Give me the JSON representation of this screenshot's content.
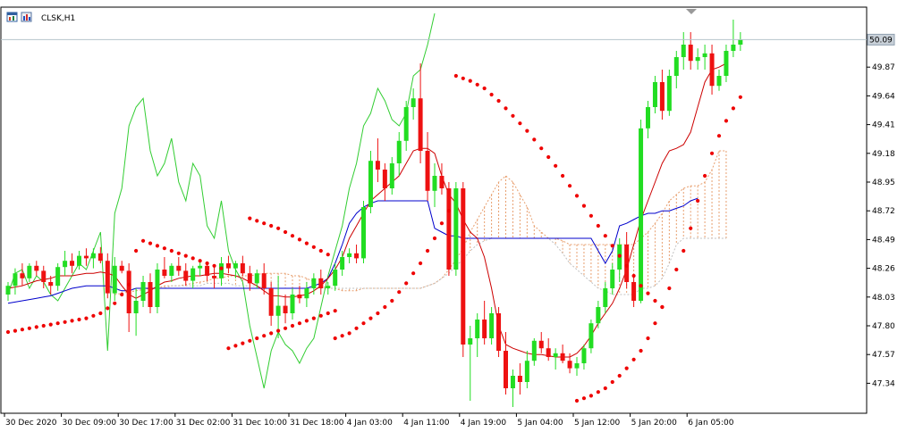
{
  "chart_data": {
    "type": "candlestick",
    "symbol_label": "CLSK,H1",
    "current_price_label": "50.09",
    "current_price": 50.09,
    "y_range": [
      47.1,
      50.35
    ],
    "y_ticks": [
      "49.87",
      "49.64",
      "49.41",
      "49.18",
      "48.95",
      "48.72",
      "48.49",
      "48.26",
      "48.03",
      "47.80",
      "47.57",
      "47.34"
    ],
    "x_ticks": [
      {
        "label": "30 Dec 2020",
        "bar": 0
      },
      {
        "label": "30 Dec 09:00",
        "bar": 8
      },
      {
        "label": "30 Dec 17:00",
        "bar": 16
      },
      {
        "label": "31 Dec 02:00",
        "bar": 24
      },
      {
        "label": "31 Dec 10:00",
        "bar": 32
      },
      {
        "label": "31 Dec 18:00",
        "bar": 40
      },
      {
        "label": "4 Jan 03:00",
        "bar": 48
      },
      {
        "label": "4 Jan 11:00",
        "bar": 56
      },
      {
        "label": "4 Jan 19:00",
        "bar": 64
      },
      {
        "label": "5 Jan 04:00",
        "bar": 72
      },
      {
        "label": "5 Jan 12:00",
        "bar": 80
      },
      {
        "label": "5 Jan 20:00",
        "bar": 88
      },
      {
        "label": "6 Jan 05:00",
        "bar": 96
      }
    ],
    "candles": [
      [
        48.05,
        48.15,
        48.0,
        48.12
      ],
      [
        48.12,
        48.26,
        48.05,
        48.22
      ],
      [
        48.22,
        48.3,
        48.12,
        48.18
      ],
      [
        48.18,
        48.3,
        48.15,
        48.28
      ],
      [
        48.28,
        48.32,
        48.2,
        48.24
      ],
      [
        48.24,
        48.28,
        48.1,
        48.15
      ],
      [
        48.15,
        48.2,
        48.05,
        48.12
      ],
      [
        48.12,
        48.3,
        48.08,
        48.27
      ],
      [
        48.27,
        48.4,
        48.2,
        48.32
      ],
      [
        48.32,
        48.38,
        48.22,
        48.28
      ],
      [
        48.28,
        48.4,
        48.25,
        48.36
      ],
      [
        48.36,
        48.42,
        48.28,
        48.34
      ],
      [
        48.34,
        48.42,
        48.26,
        48.38
      ],
      [
        48.38,
        48.43,
        48.3,
        48.32
      ],
      [
        48.32,
        48.38,
        48.02,
        48.06
      ],
      [
        48.06,
        48.35,
        48.0,
        48.28
      ],
      [
        48.28,
        48.32,
        48.22,
        48.24
      ],
      [
        48.24,
        48.3,
        47.75,
        47.9
      ],
      [
        47.9,
        48.1,
        47.72,
        48.0
      ],
      [
        48.0,
        48.2,
        47.95,
        48.15
      ],
      [
        48.15,
        48.22,
        47.9,
        47.95
      ],
      [
        47.95,
        48.3,
        47.9,
        48.25
      ],
      [
        48.25,
        48.35,
        48.18,
        48.2
      ],
      [
        48.2,
        48.3,
        48.15,
        48.28
      ],
      [
        48.28,
        48.35,
        48.2,
        48.24
      ],
      [
        48.24,
        48.3,
        48.12,
        48.16
      ],
      [
        48.16,
        48.28,
        48.1,
        48.26
      ],
      [
        48.26,
        48.32,
        48.2,
        48.28
      ],
      [
        48.28,
        48.3,
        48.16,
        48.2
      ],
      [
        48.2,
        48.28,
        48.1,
        48.18
      ],
      [
        48.18,
        48.35,
        48.12,
        48.3
      ],
      [
        48.3,
        48.36,
        48.22,
        48.26
      ],
      [
        48.26,
        48.32,
        48.18,
        48.3
      ],
      [
        48.3,
        48.36,
        48.2,
        48.22
      ],
      [
        48.22,
        48.28,
        48.08,
        48.14
      ],
      [
        48.14,
        48.25,
        48.1,
        48.22
      ],
      [
        48.22,
        48.3,
        48.05,
        48.1
      ],
      [
        48.1,
        48.15,
        47.8,
        47.88
      ],
      [
        47.88,
        48.2,
        47.7,
        47.96
      ],
      [
        47.96,
        48.05,
        47.82,
        47.9
      ],
      [
        47.9,
        48.1,
        47.85,
        48.05
      ],
      [
        48.05,
        48.12,
        47.98,
        48.02
      ],
      [
        48.02,
        48.15,
        47.95,
        48.1
      ],
      [
        48.1,
        48.22,
        48.05,
        48.18
      ],
      [
        48.18,
        48.25,
        48.05,
        48.1
      ],
      [
        48.1,
        48.15,
        48.05,
        48.12
      ],
      [
        48.12,
        48.3,
        48.08,
        48.25
      ],
      [
        48.25,
        48.4,
        48.2,
        48.35
      ],
      [
        48.35,
        48.42,
        48.3,
        48.38
      ],
      [
        48.38,
        48.45,
        48.3,
        48.34
      ],
      [
        48.34,
        48.8,
        48.3,
        48.75
      ],
      [
        48.75,
        49.2,
        48.7,
        49.12
      ],
      [
        49.12,
        49.3,
        48.95,
        49.05
      ],
      [
        49.05,
        49.1,
        48.8,
        48.9
      ],
      [
        48.9,
        49.15,
        48.85,
        49.1
      ],
      [
        49.1,
        49.35,
        49.0,
        49.28
      ],
      [
        49.28,
        49.6,
        49.2,
        49.55
      ],
      [
        49.55,
        49.7,
        49.45,
        49.62
      ],
      [
        49.62,
        49.9,
        49.1,
        49.2
      ],
      [
        49.2,
        49.35,
        48.8,
        48.88
      ],
      [
        48.88,
        49.1,
        48.75,
        49.0
      ],
      [
        49.0,
        49.1,
        48.85,
        48.9
      ],
      [
        48.9,
        48.95,
        48.2,
        48.25
      ],
      [
        48.25,
        48.95,
        48.2,
        48.9
      ],
      [
        48.9,
        48.95,
        47.55,
        47.65
      ],
      [
        47.65,
        47.8,
        47.2,
        47.7
      ],
      [
        47.7,
        47.9,
        47.55,
        47.85
      ],
      [
        47.85,
        48.0,
        47.65,
        47.7
      ],
      [
        47.7,
        47.95,
        47.65,
        47.9
      ],
      [
        47.9,
        47.95,
        47.55,
        47.6
      ],
      [
        47.6,
        47.75,
        47.25,
        47.3
      ],
      [
        47.3,
        47.45,
        47.15,
        47.4
      ],
      [
        47.4,
        47.5,
        47.25,
        47.35
      ],
      [
        47.35,
        47.6,
        47.3,
        47.52
      ],
      [
        47.52,
        47.7,
        47.48,
        47.68
      ],
      [
        47.68,
        47.75,
        47.58,
        47.62
      ],
      [
        47.62,
        47.7,
        47.52,
        47.55
      ],
      [
        47.55,
        47.62,
        47.45,
        47.58
      ],
      [
        47.58,
        47.65,
        47.5,
        47.52
      ],
      [
        47.52,
        47.58,
        47.42,
        47.46
      ],
      [
        47.46,
        47.55,
        47.4,
        47.5
      ],
      [
        47.5,
        47.65,
        47.45,
        47.62
      ],
      [
        47.62,
        47.85,
        47.58,
        47.82
      ],
      [
        47.82,
        48.0,
        47.78,
        47.95
      ],
      [
        47.95,
        48.15,
        47.9,
        48.1
      ],
      [
        48.1,
        48.3,
        48.05,
        48.25
      ],
      [
        48.25,
        48.5,
        48.15,
        48.45
      ],
      [
        48.45,
        48.55,
        48.1,
        48.15
      ],
      [
        48.15,
        48.2,
        47.95,
        48.0
      ],
      [
        48.0,
        49.45,
        47.98,
        49.38
      ],
      [
        49.38,
        49.6,
        49.3,
        49.55
      ],
      [
        49.55,
        49.8,
        49.5,
        49.75
      ],
      [
        49.75,
        49.85,
        49.45,
        49.52
      ],
      [
        49.52,
        49.85,
        49.48,
        49.8
      ],
      [
        49.8,
        50.0,
        49.7,
        49.95
      ],
      [
        49.95,
        50.15,
        49.85,
        50.05
      ],
      [
        50.05,
        50.15,
        49.85,
        49.92
      ],
      [
        49.92,
        50.02,
        49.85,
        49.95
      ],
      [
        49.95,
        50.05,
        49.85,
        49.98
      ],
      [
        49.98,
        50.05,
        49.65,
        49.72
      ],
      [
        49.72,
        49.85,
        49.68,
        49.8
      ],
      [
        49.8,
        50.05,
        49.75,
        50.0
      ],
      [
        50.0,
        50.25,
        49.95,
        50.05
      ],
      [
        50.05,
        50.15,
        50.0,
        50.09
      ]
    ],
    "psar_segments": [
      {
        "start": 0,
        "values": [
          47.75,
          47.76,
          47.77,
          47.78,
          47.79,
          47.8,
          47.81,
          47.82,
          47.83,
          47.84,
          47.85,
          47.86,
          47.88,
          47.9,
          47.94,
          47.98,
          48.05,
          48.13,
          48.4
        ]
      },
      {
        "start": 19,
        "values": [
          48.48,
          48.46,
          48.44,
          48.42,
          48.4,
          48.38,
          48.36,
          48.34,
          48.32,
          48.3,
          48.28,
          48.26
        ]
      },
      {
        "start": 31,
        "values": [
          47.62,
          47.64,
          47.66,
          47.68,
          47.7,
          47.72,
          47.74,
          47.76,
          47.78,
          47.8,
          47.82,
          47.84,
          47.86,
          47.88,
          47.9,
          47.92
        ]
      },
      {
        "start": 34,
        "values": [
          48.66,
          48.64,
          48.62,
          48.6,
          48.58,
          48.55,
          48.52,
          48.49,
          48.46,
          48.43,
          48.4,
          48.37
        ]
      },
      {
        "start": 46,
        "values": [
          47.7,
          47.72,
          47.74,
          47.78,
          47.82,
          47.86,
          47.9,
          47.95,
          48.0,
          48.07,
          48.14,
          48.22,
          48.3,
          48.4,
          48.5,
          48.62,
          48.72
        ]
      },
      {
        "start": 63,
        "values": [
          49.8,
          49.78,
          49.76,
          49.73,
          49.7,
          49.65,
          49.6,
          49.54,
          49.48,
          49.42,
          49.36,
          49.29,
          49.22,
          49.15,
          49.08,
          49.0,
          48.92,
          48.84,
          48.76,
          48.68,
          48.6,
          48.52,
          48.44,
          48.36,
          48.28,
          48.2,
          48.12,
          48.06,
          48.0,
          47.95
        ]
      },
      {
        "start": 80,
        "values": [
          47.2,
          47.22,
          47.24,
          47.27,
          47.3,
          47.35,
          47.4,
          47.46,
          47.53,
          47.6,
          47.7,
          47.82,
          47.95,
          48.1,
          48.25,
          48.4,
          48.58,
          48.8,
          49.0,
          49.18,
          49.32,
          49.44,
          49.54,
          49.63
        ]
      }
    ],
    "tenkan": [
      48.1,
      48.11,
      48.12,
      48.14,
      48.16,
      48.17,
      48.18,
      48.2,
      48.2,
      48.2,
      48.21,
      48.22,
      48.22,
      48.23,
      48.22,
      48.2,
      48.12,
      48.05,
      48.02,
      48.05,
      48.08,
      48.12,
      48.15,
      48.16,
      48.18,
      48.19,
      48.2,
      48.2,
      48.21,
      48.22,
      48.22,
      48.21,
      48.2,
      48.18,
      48.15,
      48.12,
      48.08,
      48.04,
      48.04,
      48.03,
      48.03,
      48.04,
      48.05,
      48.08,
      48.12,
      48.18,
      48.25,
      48.35,
      48.5,
      48.6,
      48.7,
      48.8,
      48.85,
      48.9,
      48.95,
      49.0,
      49.1,
      49.2,
      49.22,
      49.22,
      49.18,
      49.0,
      48.85,
      48.78,
      48.65,
      48.55,
      48.5,
      48.35,
      48.1,
      47.8,
      47.65,
      47.62,
      47.6,
      47.58,
      47.57,
      47.57,
      47.56,
      47.55,
      47.55,
      47.55,
      47.58,
      47.64,
      47.72,
      47.82,
      47.9,
      47.98,
      48.1,
      48.25,
      48.45,
      48.65,
      48.8,
      48.95,
      49.1,
      49.2,
      49.22,
      49.25,
      49.35,
      49.55,
      49.75,
      49.85,
      49.87,
      49.9
    ],
    "kijun": [
      47.98,
      47.99,
      48.0,
      48.01,
      48.02,
      48.03,
      48.04,
      48.06,
      48.08,
      48.1,
      48.11,
      48.12,
      48.12,
      48.12,
      48.12,
      48.1,
      48.08,
      48.08,
      48.1,
      48.1,
      48.1,
      48.1,
      48.1,
      48.1,
      48.1,
      48.1,
      48.1,
      48.1,
      48.1,
      48.1,
      48.1,
      48.1,
      48.1,
      48.1,
      48.1,
      48.1,
      48.1,
      48.1,
      48.1,
      48.1,
      48.1,
      48.1,
      48.1,
      48.12,
      48.14,
      48.18,
      48.3,
      48.45,
      48.62,
      48.7,
      48.75,
      48.78,
      48.8,
      48.8,
      48.8,
      48.8,
      48.8,
      48.8,
      48.8,
      48.8,
      48.58,
      48.55,
      48.52,
      48.52,
      48.5,
      48.5,
      48.5,
      48.5,
      48.5,
      48.5,
      48.5,
      48.5,
      48.5,
      48.5,
      48.5,
      48.5,
      48.5,
      48.5,
      48.5,
      48.5,
      48.5,
      48.5,
      48.5,
      48.4,
      48.3,
      48.4,
      48.6,
      48.62,
      48.65,
      48.68,
      48.7,
      48.7,
      48.72,
      48.72,
      48.74,
      48.76,
      48.8,
      48.82
    ],
    "chikou_start": 0,
    "chikou": [
      48.05,
      48.22,
      48.25,
      48.1,
      48.2,
      48.15,
      48.05,
      48.0,
      48.1,
      48.2,
      48.3,
      48.25,
      48.4,
      48.55,
      47.6,
      48.7,
      48.9,
      49.4,
      49.55,
      49.62,
      49.2,
      49.0,
      49.1,
      49.3,
      48.95,
      48.8,
      49.1,
      49.0,
      48.6,
      48.5,
      48.8,
      48.4,
      48.25,
      48.15,
      47.8,
      47.55,
      47.3,
      47.6,
      47.75,
      47.65,
      47.6,
      47.5,
      47.62,
      47.7,
      47.95,
      48.2,
      48.4,
      48.6,
      48.9,
      49.1,
      49.4,
      49.5,
      49.7,
      49.6,
      49.45,
      49.4,
      49.5,
      49.8,
      49.85,
      50.05,
      50.3
    ],
    "cloud_start": 15,
    "span_a": [
      48.05,
      48.06,
      48.07,
      48.08,
      48.09,
      48.1,
      48.1,
      48.12,
      48.12,
      48.12,
      48.13,
      48.14,
      48.15,
      48.16,
      48.18,
      48.18,
      48.2,
      48.2,
      48.2,
      48.2,
      48.21,
      48.22,
      48.22,
      48.22,
      48.22,
      48.2,
      48.2,
      48.18,
      48.15,
      48.12,
      48.1,
      48.1,
      48.08,
      48.08,
      48.08,
      48.1,
      48.1,
      48.1,
      48.1,
      48.1,
      48.1,
      48.1,
      48.1,
      48.1,
      48.12,
      48.14,
      48.18,
      48.25,
      48.33,
      48.42,
      48.55,
      48.65,
      48.75,
      48.85,
      48.95,
      49.0,
      48.95,
      48.85,
      48.75,
      48.6,
      48.55,
      48.5,
      48.5,
      48.48,
      48.45,
      48.45,
      48.45,
      48.45,
      48.45,
      48.45,
      48.45,
      48.45,
      48.45,
      48.45,
      48.5,
      48.55,
      48.62,
      48.7,
      48.8,
      48.85,
      48.9,
      48.92,
      48.92,
      48.95,
      49.05,
      49.2,
      49.2
    ],
    "span_b": [
      48.08,
      48.08,
      48.09,
      48.1,
      48.1,
      48.1,
      48.1,
      48.1,
      48.12,
      48.12,
      48.12,
      48.12,
      48.12,
      48.14,
      48.14,
      48.14,
      48.14,
      48.12,
      48.12,
      48.12,
      48.12,
      48.1,
      48.1,
      48.1,
      48.1,
      48.1,
      48.1,
      48.1,
      48.1,
      48.1,
      48.1,
      48.1,
      48.1,
      48.1,
      48.1,
      48.1,
      48.1,
      48.1,
      48.1,
      48.1,
      48.1,
      48.1,
      48.1,
      48.1,
      48.12,
      48.14,
      48.18,
      48.22,
      48.28,
      48.33,
      48.4,
      48.45,
      48.48,
      48.5,
      48.5,
      48.5,
      48.5,
      48.5,
      48.5,
      48.5,
      48.5,
      48.5,
      48.45,
      48.38,
      48.3,
      48.25,
      48.2,
      48.15,
      48.1,
      48.08,
      48.05,
      48.05,
      48.05,
      48.05,
      48.1,
      48.1,
      48.12,
      48.18,
      48.3,
      48.45,
      48.5,
      48.5,
      48.5,
      48.5,
      48.5,
      48.5,
      48.5
    ]
  }
}
